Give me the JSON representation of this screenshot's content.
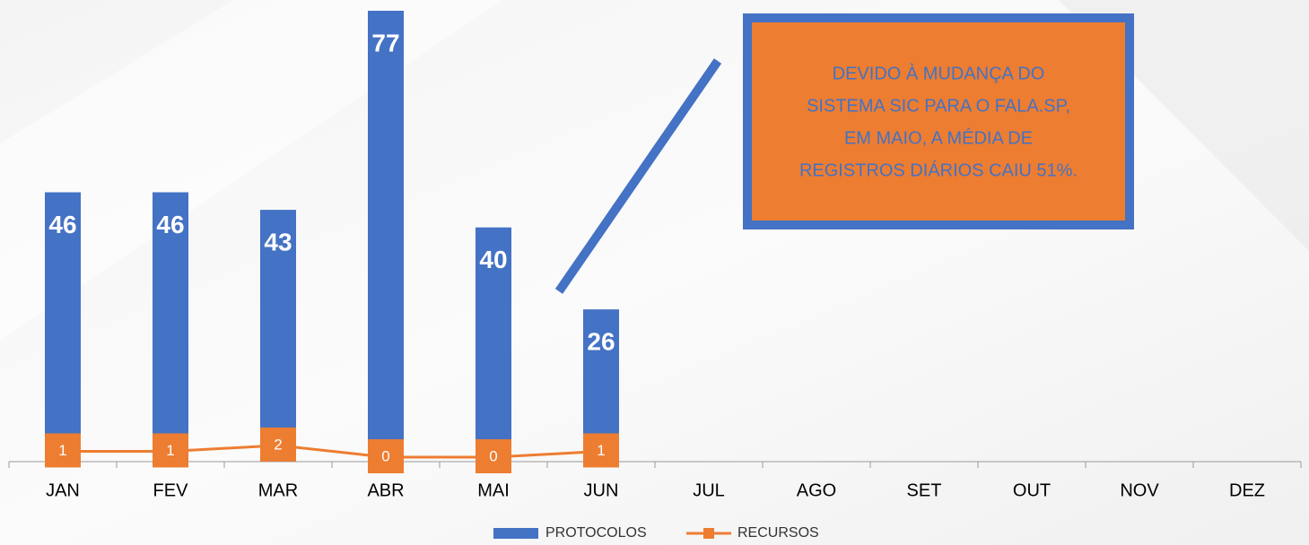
{
  "chart_data": {
    "type": "bar_line",
    "categories": [
      "JAN",
      "FEV",
      "MAR",
      "ABR",
      "MAI",
      "JUN",
      "JUL",
      "AGO",
      "SET",
      "OUT",
      "NOV",
      "DEZ"
    ],
    "series": [
      {
        "name": "PROTOCOLOS",
        "type": "bar",
        "color": "#4472c4",
        "values": [
          46,
          46,
          43,
          77,
          40,
          26,
          null,
          null,
          null,
          null,
          null,
          null
        ]
      },
      {
        "name": "RECURSOS",
        "type": "line",
        "color": "#ed7d31",
        "values": [
          1,
          1,
          2,
          0,
          0,
          1,
          null,
          null,
          null,
          null,
          null,
          null
        ]
      }
    ],
    "annotation": [
      "DEVIDO À MUDANÇA DO",
      "SISTEMA SIC PARA O FALA.SP,",
      "EM MAIO, A MÉDIA DE",
      "REGISTROS DIÁRIOS CAIU 51%."
    ],
    "legend": "bottom"
  }
}
